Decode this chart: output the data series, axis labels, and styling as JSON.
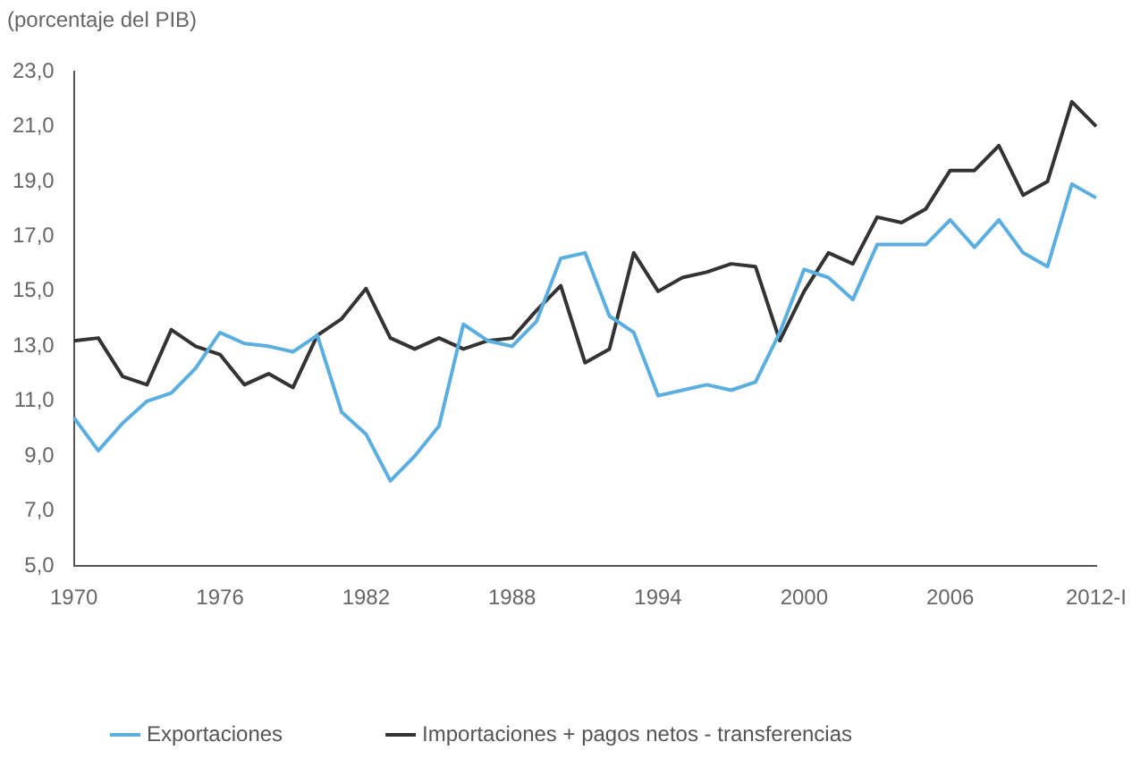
{
  "chart_data": {
    "type": "line",
    "ylabel": "(porcentaje del PIB)",
    "categories": [
      "1970",
      null,
      null,
      null,
      null,
      null,
      "1976",
      null,
      null,
      null,
      null,
      null,
      "1982",
      null,
      null,
      null,
      null,
      null,
      "1988",
      null,
      null,
      null,
      null,
      null,
      "1994",
      null,
      null,
      null,
      null,
      null,
      "2000",
      null,
      null,
      null,
      null,
      null,
      "2006",
      null,
      null,
      null,
      null,
      null,
      "2012-I"
    ],
    "series": [
      {
        "name": "Exportaciones",
        "color": "#5aaee0",
        "values": [
          10.4,
          9.2,
          10.2,
          11.0,
          11.3,
          12.2,
          13.5,
          13.1,
          13.0,
          12.8,
          13.4,
          10.6,
          9.8,
          8.1,
          9.0,
          10.1,
          13.8,
          13.2,
          13.0,
          13.9,
          16.2,
          16.4,
          14.1,
          13.5,
          11.2,
          11.4,
          11.6,
          11.4,
          11.7,
          13.5,
          15.8,
          15.5,
          14.7,
          16.7,
          16.7,
          16.7,
          17.6,
          16.6,
          17.6,
          16.4,
          15.9,
          18.9,
          18.4
        ]
      },
      {
        "name": "Importaciones + pagos netos - transferencias",
        "color": "#333333",
        "values": [
          13.2,
          13.3,
          11.9,
          11.6,
          13.6,
          13.0,
          12.7,
          11.6,
          12.0,
          11.5,
          13.4,
          14.0,
          15.1,
          13.3,
          12.9,
          13.3,
          12.9,
          13.2,
          13.3,
          14.3,
          15.2,
          12.4,
          12.9,
          16.4,
          15.0,
          15.5,
          15.7,
          16.0,
          15.9,
          13.2,
          15.0,
          16.4,
          16.0,
          17.7,
          17.5,
          18.0,
          19.4,
          19.4,
          20.3,
          18.5,
          19.0,
          21.9,
          21.0
        ]
      }
    ],
    "ylim": [
      5,
      23
    ],
    "yticks": [
      {
        "value": 5,
        "label": "5,0"
      },
      {
        "value": 7,
        "label": "7,0"
      },
      {
        "value": 9,
        "label": "9,0"
      },
      {
        "value": 11,
        "label": "11,0"
      },
      {
        "value": 13,
        "label": "13,0"
      },
      {
        "value": 15,
        "label": "15,0"
      },
      {
        "value": 17,
        "label": "17,0"
      },
      {
        "value": 19,
        "label": "19,0"
      },
      {
        "value": 21,
        "label": "21,0"
      },
      {
        "value": 23,
        "label": "23,0"
      }
    ],
    "grid": false,
    "legend": "bottom",
    "marker": "none",
    "line_style": "solid"
  }
}
